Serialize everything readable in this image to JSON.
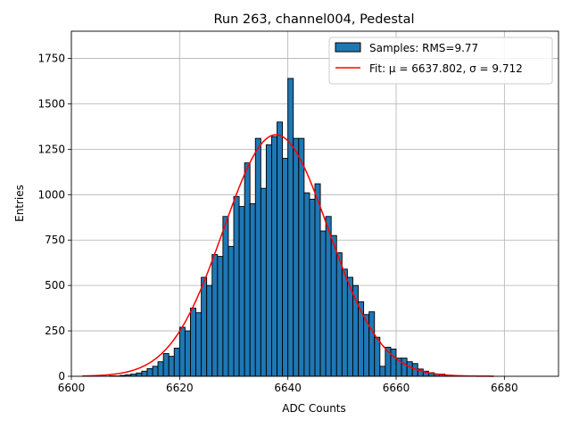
{
  "chart_data": {
    "type": "bar",
    "title": "Run 263, channel004, Pedestal",
    "xlabel": "ADC Counts",
    "ylabel": "Entries",
    "xlim": [
      6600,
      6690
    ],
    "ylim": [
      0,
      1900
    ],
    "xticks": [
      6600,
      6620,
      6640,
      6660,
      6680
    ],
    "yticks": [
      0,
      250,
      500,
      750,
      1000,
      1250,
      1500,
      1750
    ],
    "grid": true,
    "legend_position": "top-right",
    "bin_width": 1,
    "bins": [
      [
        6602,
        0
      ],
      [
        6603,
        0
      ],
      [
        6604,
        0
      ],
      [
        6605,
        0
      ],
      [
        6606,
        0
      ],
      [
        6607,
        2
      ],
      [
        6608,
        2
      ],
      [
        6609,
        5
      ],
      [
        6610,
        8
      ],
      [
        6611,
        12
      ],
      [
        6612,
        18
      ],
      [
        6613,
        28
      ],
      [
        6614,
        42
      ],
      [
        6615,
        55
      ],
      [
        6616,
        80
      ],
      [
        6617,
        125
      ],
      [
        6618,
        110
      ],
      [
        6619,
        155
      ],
      [
        6620,
        270
      ],
      [
        6621,
        250
      ],
      [
        6622,
        375
      ],
      [
        6623,
        350
      ],
      [
        6624,
        545
      ],
      [
        6625,
        500
      ],
      [
        6626,
        670
      ],
      [
        6627,
        660
      ],
      [
        6628,
        880
      ],
      [
        6629,
        715
      ],
      [
        6630,
        990
      ],
      [
        6631,
        935
      ],
      [
        6632,
        1175
      ],
      [
        6633,
        950
      ],
      [
        6634,
        1310
      ],
      [
        6635,
        1035
      ],
      [
        6636,
        1275
      ],
      [
        6637,
        1320
      ],
      [
        6638,
        1400
      ],
      [
        6639,
        1200
      ],
      [
        6640,
        1640
      ],
      [
        6641,
        1310
      ],
      [
        6642,
        1310
      ],
      [
        6643,
        1010
      ],
      [
        6644,
        975
      ],
      [
        6645,
        1060
      ],
      [
        6646,
        800
      ],
      [
        6647,
        880
      ],
      [
        6648,
        775
      ],
      [
        6649,
        680
      ],
      [
        6650,
        590
      ],
      [
        6651,
        545
      ],
      [
        6652,
        500
      ],
      [
        6653,
        410
      ],
      [
        6654,
        340
      ],
      [
        6655,
        355
      ],
      [
        6656,
        215
      ],
      [
        6657,
        55
      ],
      [
        6658,
        160
      ],
      [
        6659,
        150
      ],
      [
        6660,
        100
      ],
      [
        6661,
        100
      ],
      [
        6662,
        80
      ],
      [
        6663,
        70
      ],
      [
        6664,
        40
      ],
      [
        6665,
        28
      ],
      [
        6666,
        20
      ],
      [
        6667,
        12
      ],
      [
        6668,
        12
      ],
      [
        6669,
        5
      ],
      [
        6670,
        3
      ],
      [
        6671,
        3
      ],
      [
        6672,
        2
      ],
      [
        6673,
        2
      ],
      [
        6674,
        1
      ],
      [
        6675,
        1
      ],
      [
        6676,
        1
      ],
      [
        6677,
        1
      ]
    ],
    "fit": {
      "mu": 6637.802,
      "sigma": 9.712,
      "amplitude": 1330,
      "x_range": [
        6602,
        6678
      ]
    },
    "series": [
      {
        "name": "Samples: RMS=9.77",
        "color": "#1f77b4",
        "kind": "histogram"
      },
      {
        "name": "Fit: μ = 6637.802, σ = 9.712",
        "color": "#ff0000",
        "kind": "line"
      }
    ]
  }
}
